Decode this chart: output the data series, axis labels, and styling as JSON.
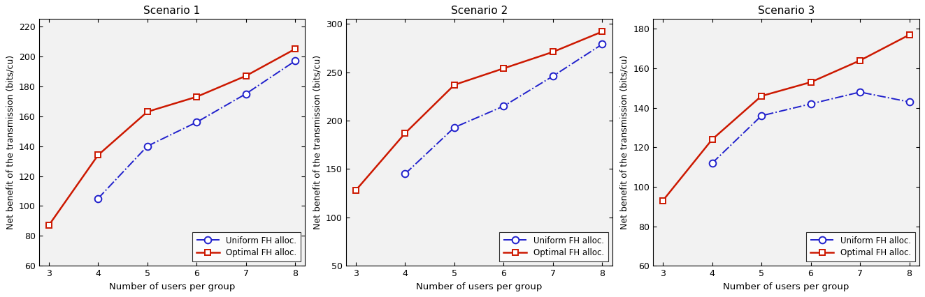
{
  "x": [
    3,
    4,
    5,
    6,
    7,
    8
  ],
  "scenarios": [
    {
      "title": "Scenario 1",
      "ylim": [
        60,
        225
      ],
      "yticks": [
        60,
        80,
        100,
        120,
        140,
        160,
        180,
        200,
        220
      ],
      "uniform_x": [
        4,
        5,
        6,
        7,
        8
      ],
      "uniform_y": [
        105,
        140,
        156,
        175,
        197
      ],
      "optimal_x": [
        3,
        4,
        5,
        6,
        7,
        8
      ],
      "optimal_y": [
        87,
        134,
        163,
        173,
        187,
        205
      ]
    },
    {
      "title": "Scenario 2",
      "ylim": [
        50,
        305
      ],
      "yticks": [
        50,
        100,
        150,
        200,
        250,
        300
      ],
      "uniform_x": [
        4,
        5,
        6,
        7,
        8
      ],
      "uniform_y": [
        145,
        193,
        215,
        246,
        279
      ],
      "optimal_x": [
        3,
        4,
        5,
        6,
        7,
        8
      ],
      "optimal_y": [
        128,
        187,
        237,
        254,
        271,
        292
      ]
    },
    {
      "title": "Scenario 3",
      "ylim": [
        60,
        185
      ],
      "yticks": [
        60,
        80,
        100,
        120,
        140,
        160,
        180
      ],
      "uniform_x": [
        4,
        5,
        6,
        7,
        8
      ],
      "uniform_y": [
        112,
        136,
        142,
        148,
        143
      ],
      "optimal_x": [
        3,
        4,
        5,
        6,
        7,
        8
      ],
      "optimal_y": [
        93,
        124,
        146,
        153,
        164,
        177
      ]
    }
  ],
  "xlabel": "Number of users per group",
  "ylabel": "Net benefit of the transmission (bits/cu)",
  "uniform_color": "#2020CC",
  "optimal_color": "#CC1800",
  "uniform_label": "Uniform FH alloc.",
  "optimal_label": "Optimal FH alloc.",
  "bg_color": "#F2F2F2",
  "fig_color": "#FFFFFF"
}
